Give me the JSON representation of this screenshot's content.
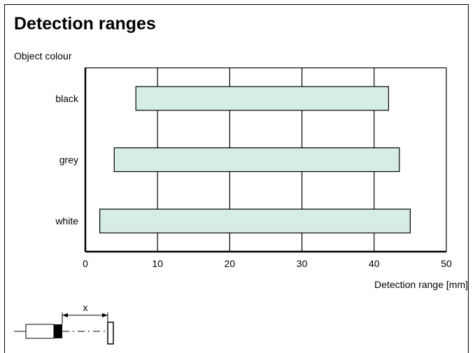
{
  "colors": {
    "bar_fill": "#d6ede6",
    "line": "#000000",
    "background": "#ffffff"
  },
  "chart_data": {
    "type": "bar",
    "orientation": "horizontal",
    "title": "Detection ranges",
    "ylabel": "Object colour",
    "xlabel": "Detection range [mm]",
    "categories": [
      "black",
      "grey",
      "white"
    ],
    "ranges": [
      [
        7,
        42
      ],
      [
        4,
        43.5
      ],
      [
        2,
        45
      ]
    ],
    "xlim": [
      0,
      50
    ],
    "xticks": [
      0,
      10,
      20,
      30,
      40,
      50
    ],
    "xtick_labels": [
      "0",
      "10",
      "20",
      "30",
      "40",
      "50"
    ],
    "grid": "vertical",
    "diagram_label": "x"
  }
}
